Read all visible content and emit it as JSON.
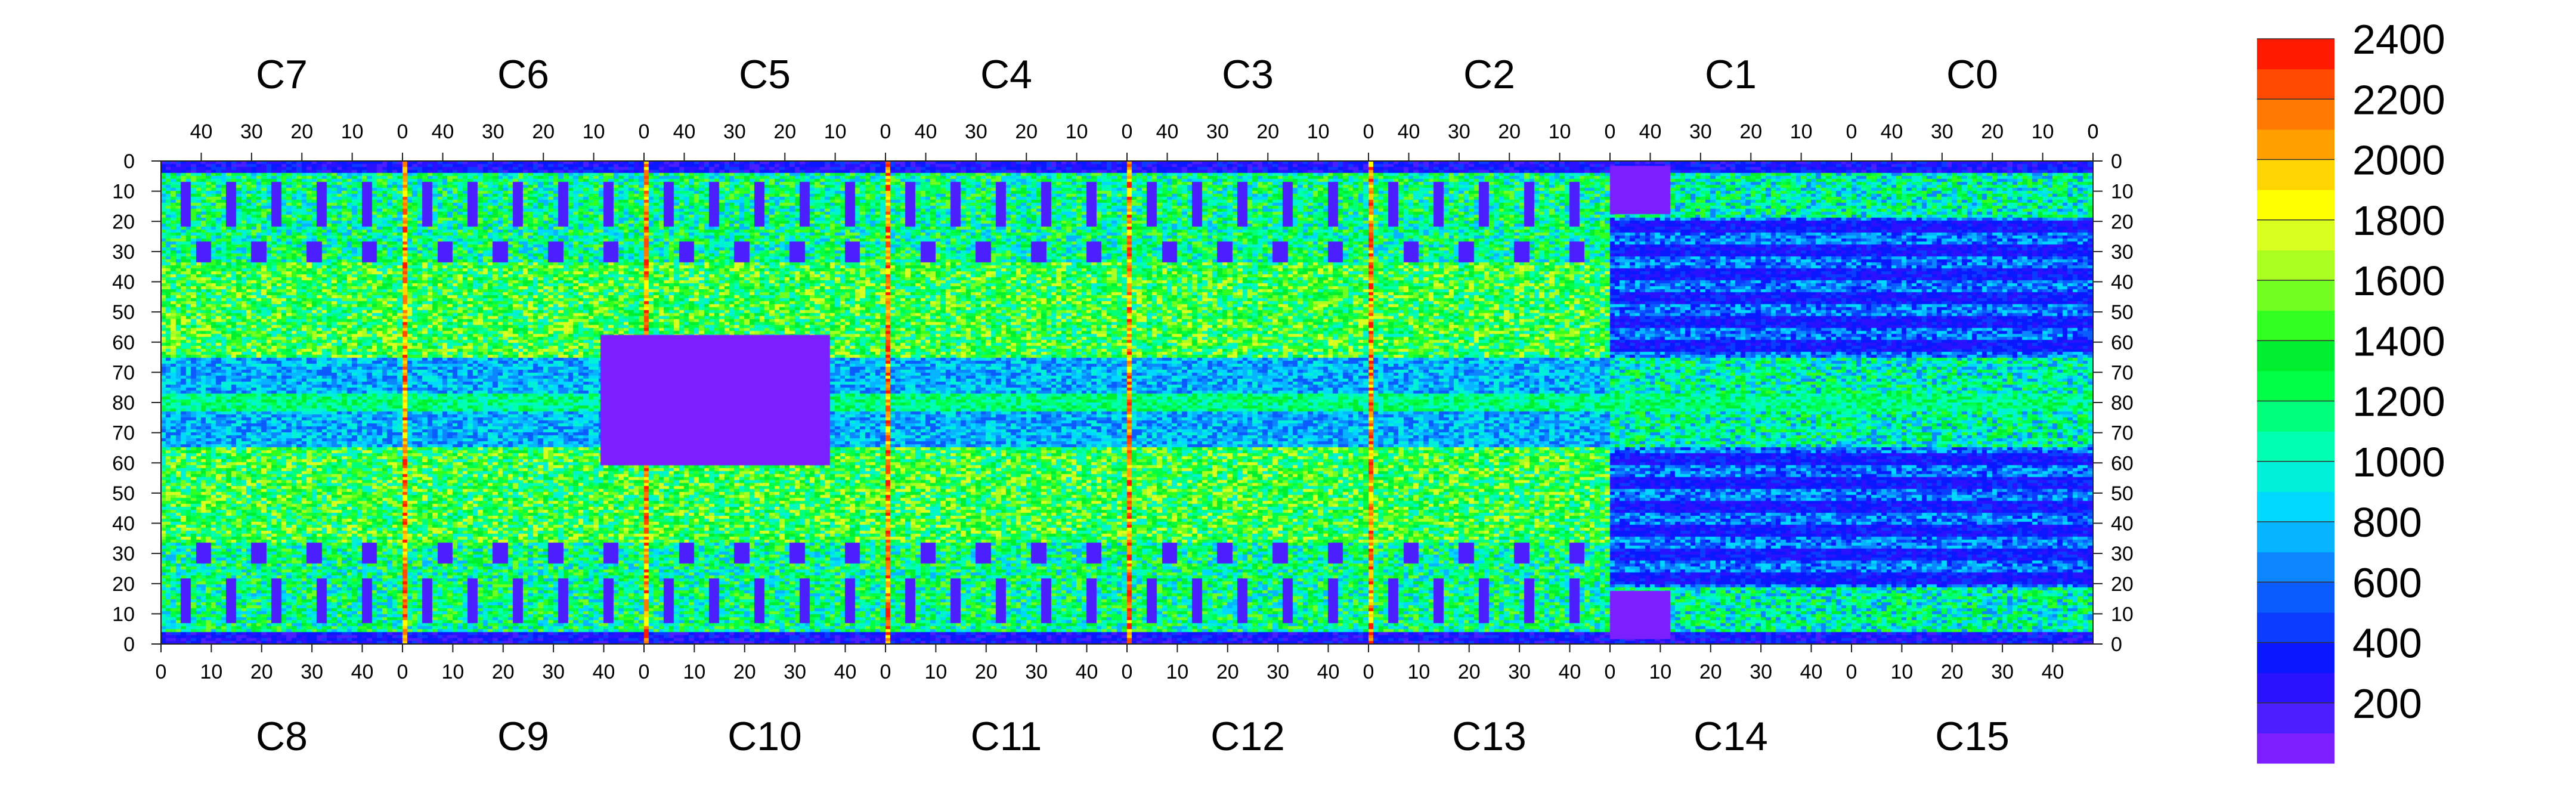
{
  "chart_data": {
    "type": "heatmap",
    "title": "",
    "top_chip_labels": [
      "C7",
      "C6",
      "C5",
      "C4",
      "C3",
      "C2",
      "C1",
      "C0"
    ],
    "bottom_chip_labels": [
      "C8",
      "C9",
      "C10",
      "C11",
      "C12",
      "C13",
      "C14",
      "C15"
    ],
    "top_x_ticks": [
      "40",
      "30",
      "20",
      "10",
      "0"
    ],
    "bottom_x_ticks": [
      "0",
      "10",
      "20",
      "30",
      "40"
    ],
    "y_ticks": [
      "0",
      "10",
      "20",
      "30",
      "40",
      "50",
      "60",
      "70",
      "80",
      "70",
      "60",
      "50",
      "40",
      "30",
      "20",
      "10",
      "0"
    ],
    "colorbar": {
      "min": 0,
      "max": 2400,
      "step": 100,
      "tick_labels": [
        "2400",
        "2200",
        "2000",
        "1800",
        "1600",
        "1400",
        "1200",
        "1000",
        "800",
        "600",
        "400",
        "200"
      ],
      "colors": [
        "#7b1fff",
        "#4b1fff",
        "#2a12ff",
        "#0a18ff",
        "#0a3dff",
        "#0b5cff",
        "#0b86ff",
        "#06b4ff",
        "#00d8ff",
        "#00f0d8",
        "#00ffb0",
        "#00ff7a",
        "#00ff45",
        "#00f030",
        "#30ff20",
        "#70ff20",
        "#aaff20",
        "#d9ff20",
        "#ffff00",
        "#ffd400",
        "#ffa000",
        "#ff7800",
        "#ff4a00",
        "#ff1a00"
      ]
    },
    "grid": "chip columns 48 wide, rows mirrored about row 80"
  }
}
